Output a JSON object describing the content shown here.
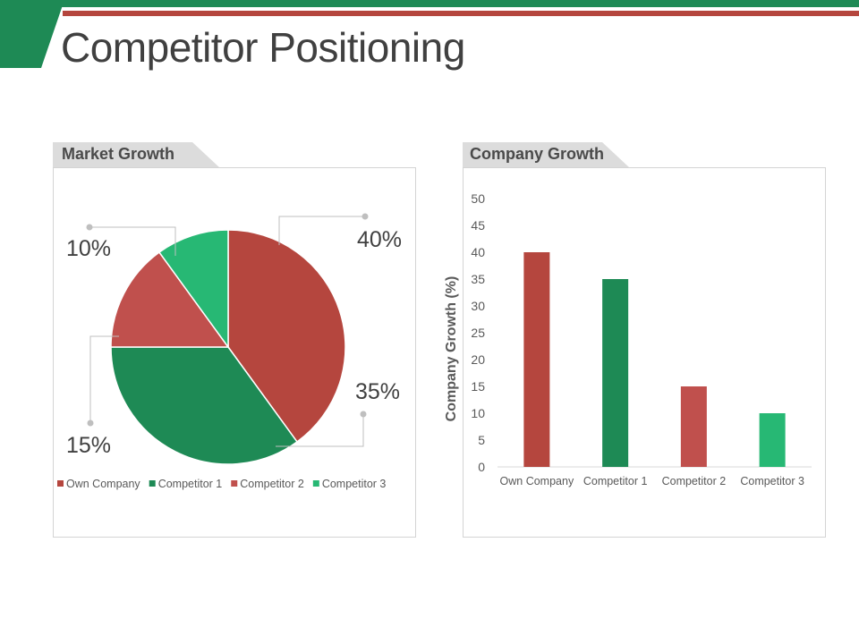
{
  "slide": {
    "title": "Competitor Positioning",
    "colors": {
      "green_bar": "#1e8a55",
      "red_bar": "#b5463e"
    }
  },
  "panels": {
    "left_label": "Market Growth",
    "right_label": "Company Growth"
  },
  "chart_data": [
    {
      "type": "pie",
      "categories": [
        "Own Company",
        "Competitor 1",
        "Competitor 2",
        "Competitor 3"
      ],
      "values": [
        40,
        35,
        15,
        10
      ],
      "value_labels": [
        "40%",
        "35%",
        "15%",
        "10%"
      ],
      "colors": [
        "#b5463e",
        "#1e8a55",
        "#c0504d",
        "#27b874"
      ],
      "legend_position": "bottom"
    },
    {
      "type": "bar",
      "categories": [
        "Own Company",
        "Competitor 1",
        "Competitor 2",
        "Competitor 3"
      ],
      "values": [
        40,
        35,
        15,
        10
      ],
      "colors": [
        "#b5463e",
        "#1e8a55",
        "#c0504d",
        "#27b874"
      ],
      "ylabel": "Company Growth (%)",
      "ylim": [
        0,
        50
      ],
      "yticks": [
        0,
        5,
        10,
        15,
        20,
        25,
        30,
        35,
        40,
        45,
        50
      ],
      "grid": false
    }
  ]
}
